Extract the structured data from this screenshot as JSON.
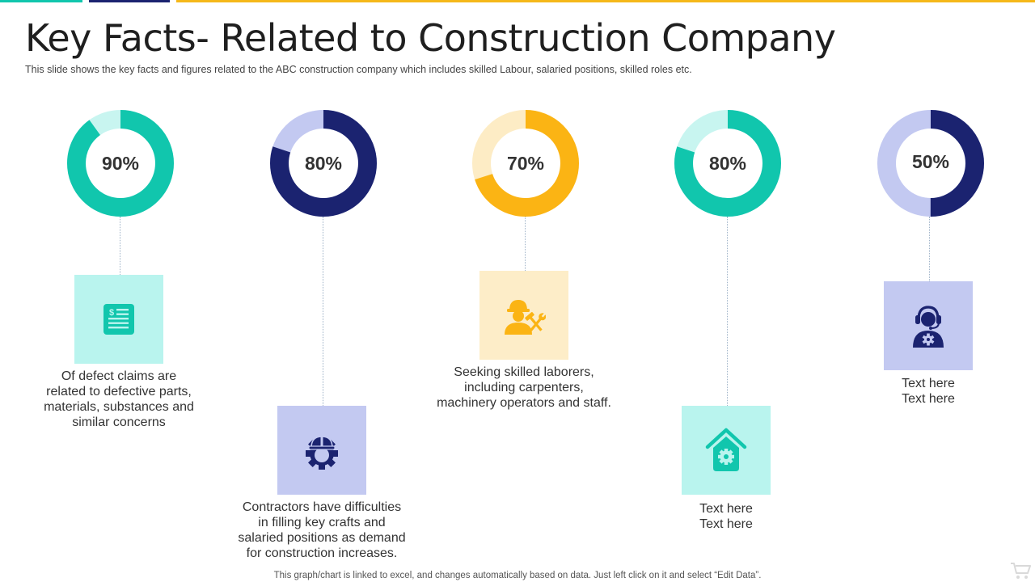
{
  "slide": {
    "title": "Key Facts- Related to Construction Company",
    "subtitle": "This slide shows the key facts and figures related to the ABC construction company which includes skilled Labour,  salaried positions, skilled roles etc.",
    "footer": "This graph/chart is linked to excel,  and changes automatically based on data. Just left click on it and select “Edit Data”."
  },
  "colors": {
    "teal": "#11c6ad",
    "navy": "#1b2370",
    "gold": "#fbb414",
    "lavender": "#c3c9f1",
    "light_teal": "#c8f5f0",
    "light_gold": "#fdecc5",
    "mint_box": "#b9f4ee",
    "cream_box": "#fdedc8",
    "accent_bar": "#f5b81a"
  },
  "facts": [
    {
      "value_label": "90%",
      "percent": 90,
      "text": "Of defect claims are\nrelated to defective parts,\nmaterials, substances and\nsimilar concerns",
      "icon": "invoice-icon"
    },
    {
      "value_label": "80%",
      "percent": 80,
      "text": "Contractors have difficulties\nin filling key crafts and\nsalaried positions as demand\nfor construction increases.",
      "icon": "gear-hardhat-icon"
    },
    {
      "value_label": "70%",
      "percent": 70,
      "text": "Seeking skilled laborers,\nincluding carpenters,\nmachinery operators and staff.",
      "icon": "construction-worker-icon"
    },
    {
      "value_label": "80%",
      "percent": 80,
      "text": "Text here\nText here",
      "icon": "home-gear-icon"
    },
    {
      "value_label": "50%",
      "percent": 50,
      "text": "Text here\nText here",
      "icon": "support-agent-icon"
    }
  ]
}
